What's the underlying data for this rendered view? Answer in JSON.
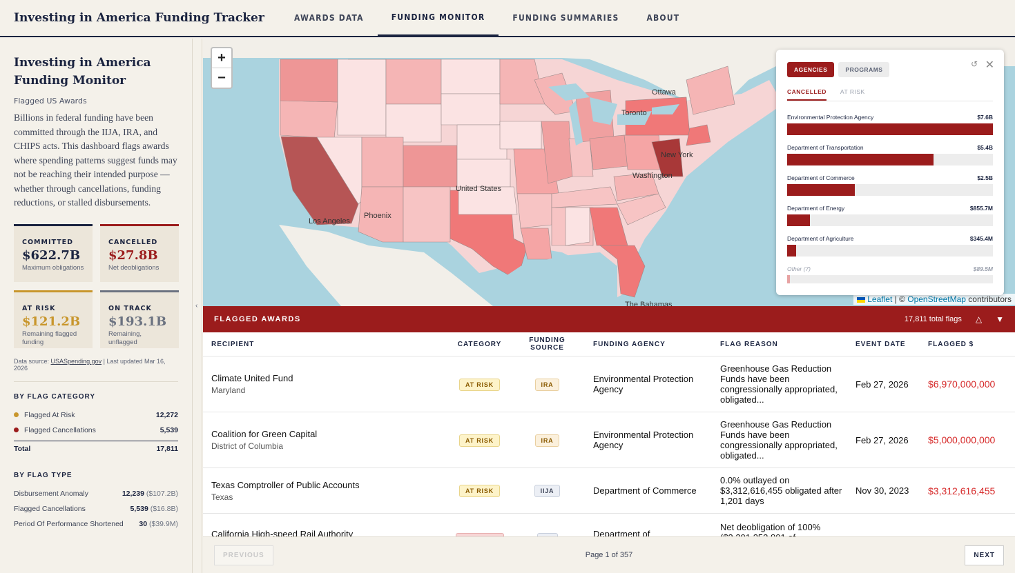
{
  "header": {
    "brand": "Investing in America Funding Tracker",
    "nav": [
      "AWARDS DATA",
      "FUNDING MONITOR",
      "FUNDING SUMMARIES",
      "ABOUT"
    ],
    "active_nav": "FUNDING MONITOR"
  },
  "sidebar": {
    "title": "Investing in America Funding Monitor",
    "subtitle": "Flagged US Awards",
    "description": "Billions in federal funding have been committed through the IIJA, IRA, and CHIPS acts. This dashboard flags awards where spending patterns suggest funds may not be reaching their intended purpose — whether through cancellations, funding reductions, or stalled disbursements.",
    "stats": {
      "committed": {
        "label": "COMMITTED",
        "value": "$622.7B",
        "note": "Maximum obligations"
      },
      "cancelled": {
        "label": "CANCELLED",
        "value": "$27.8B",
        "note": "Net deobligations"
      },
      "at_risk": {
        "label": "AT RISK",
        "value": "$121.2B",
        "note": "Remaining flagged funding"
      },
      "on_track": {
        "label": "ON TRACK",
        "value": "$193.1B",
        "note": "Remaining, unflagged"
      }
    },
    "source_prefix": "Data source:",
    "source_link": "USASpending.gov",
    "source_suffix": "| Last updated Mar 16, 2026",
    "by_category": {
      "heading": "BY FLAG CATEGORY",
      "items": [
        {
          "label": "Flagged At Risk",
          "value": "12,272",
          "color": "#c8962c"
        },
        {
          "label": "Flagged Cancellations",
          "value": "5,539",
          "color": "#9b1c1c"
        }
      ],
      "total_label": "Total",
      "total_value": "17,811"
    },
    "by_type": {
      "heading": "BY FLAG TYPE",
      "items": [
        {
          "label": "Disbursement Anomaly",
          "value": "12,239",
          "amount": "($107.2B)"
        },
        {
          "label": "Flagged Cancellations",
          "value": "5,539",
          "amount": "($16.8B)"
        },
        {
          "label": "Period Of Performance Shortened",
          "value": "30",
          "amount": "($39.9M)"
        }
      ]
    }
  },
  "map": {
    "zoom_in": "+",
    "zoom_out": "−",
    "cities": [
      "Ottawa",
      "Toronto",
      "New York",
      "Washington",
      "United States",
      "Los Angeles",
      "Phoenix",
      "The Bahamas"
    ],
    "attribution_leaflet": "Leaflet",
    "attribution_sep": " | © ",
    "attribution_osm": "OpenStreetMap",
    "attribution_suffix": " contributors"
  },
  "panel": {
    "tabs": [
      "AGENCIES",
      "PROGRAMS"
    ],
    "subtabs": [
      "CANCELLED",
      "AT RISK"
    ],
    "bars": [
      {
        "label": "Environmental Protection Agency",
        "value": "$7.6B",
        "pct": 1.0
      },
      {
        "label": "Department of Transportation",
        "value": "$5.4B",
        "pct": 0.71
      },
      {
        "label": "Department of Commerce",
        "value": "$2.5B",
        "pct": 0.33
      },
      {
        "label": "Department of Energy",
        "value": "$855.7M",
        "pct": 0.11
      },
      {
        "label": "Department of Agriculture",
        "value": "$345.4M",
        "pct": 0.045
      }
    ],
    "other": {
      "label": "Other (7)",
      "value": "$89.5M",
      "pct": 0.012
    }
  },
  "flagged": {
    "title": "FLAGGED AWARDS",
    "count": "17,811 total flags",
    "columns": [
      "RECIPIENT",
      "CATEGORY",
      "FUNDING SOURCE",
      "FUNDING AGENCY",
      "FLAG REASON",
      "EVENT DATE",
      "FLAGGED $"
    ],
    "rows": [
      {
        "name": "Climate United Fund",
        "state": "Maryland",
        "category": "AT RISK",
        "source": "IRA",
        "agency": "Environmental Protection Agency",
        "reason": "Greenhouse Gas Reduction Funds have been congressionally appropriated, obligated...",
        "date": "Feb 27, 2026",
        "amount": "$6,970,000,000"
      },
      {
        "name": "Coalition for Green Capital",
        "state": "District of Columbia",
        "category": "AT RISK",
        "source": "IRA",
        "agency": "Environmental Protection Agency",
        "reason": "Greenhouse Gas Reduction Funds have been congressionally appropriated, obligated...",
        "date": "Feb 27, 2026",
        "amount": "$5,000,000,000"
      },
      {
        "name": "Texas Comptroller of Public Accounts",
        "state": "Texas",
        "category": "AT RISK",
        "source": "IIJA",
        "agency": "Department of Commerce",
        "reason": "0.0% outlayed on $3,312,616,455 obligated after 1,201 days",
        "date": "Nov 30, 2023",
        "amount": "$3,312,616,455"
      },
      {
        "name": "California High-speed Rail Authority",
        "state": "",
        "category": "",
        "source": "",
        "agency": "Department of",
        "reason": "Net deobligation of 100% ($3,391,353,801 of",
        "date": "",
        "amount": ""
      }
    ]
  },
  "pager": {
    "previous": "PREVIOUS",
    "info": "Page 1 of 357",
    "next": "NEXT"
  }
}
